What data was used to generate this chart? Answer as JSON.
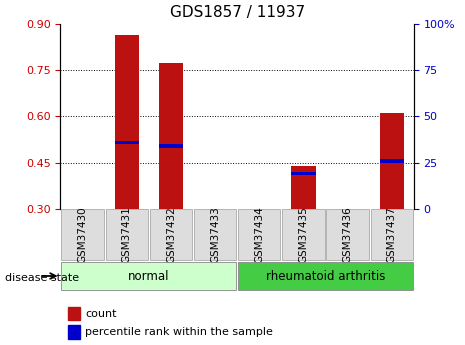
{
  "title": "GDS1857 / 11937",
  "samples": [
    "GSM37430",
    "GSM37431",
    "GSM37432",
    "GSM37433",
    "GSM37434",
    "GSM37435",
    "GSM37436",
    "GSM37437"
  ],
  "bar_heights": [
    0.0,
    0.865,
    0.775,
    0.0,
    0.0,
    0.44,
    0.0,
    0.61
  ],
  "percentile_values": [
    0.0,
    0.515,
    0.505,
    0.0,
    0.0,
    0.415,
    0.0,
    0.455
  ],
  "percentile_visible": [
    false,
    true,
    true,
    false,
    false,
    true,
    false,
    true
  ],
  "bar_bottom": 0.3,
  "ylim_left": [
    0.3,
    0.9
  ],
  "ylim_right": [
    0,
    100
  ],
  "yticks_left": [
    0.3,
    0.45,
    0.6,
    0.75,
    0.9
  ],
  "yticks_right": [
    0,
    25,
    50,
    75,
    100
  ],
  "right_tick_labels": [
    "0",
    "25",
    "50",
    "75",
    "100%"
  ],
  "bar_color": "#bb1111",
  "percentile_color": "#0000cc",
  "group_labels": [
    "normal",
    "rheumatoid arthritis"
  ],
  "group_colors": [
    "#ccffcc",
    "#44cc44"
  ],
  "disease_label": "disease state",
  "legend_count": "count",
  "legend_pct": "percentile rank within the sample",
  "left_tick_color": "#cc0000",
  "right_tick_color": "#0000cc",
  "tick_label_bg": "#dddddd",
  "bar_width": 0.55,
  "title_fontsize": 11,
  "tick_fontsize": 8,
  "label_fontsize": 7.5,
  "group_fontsize": 8.5,
  "legend_fontsize": 8
}
